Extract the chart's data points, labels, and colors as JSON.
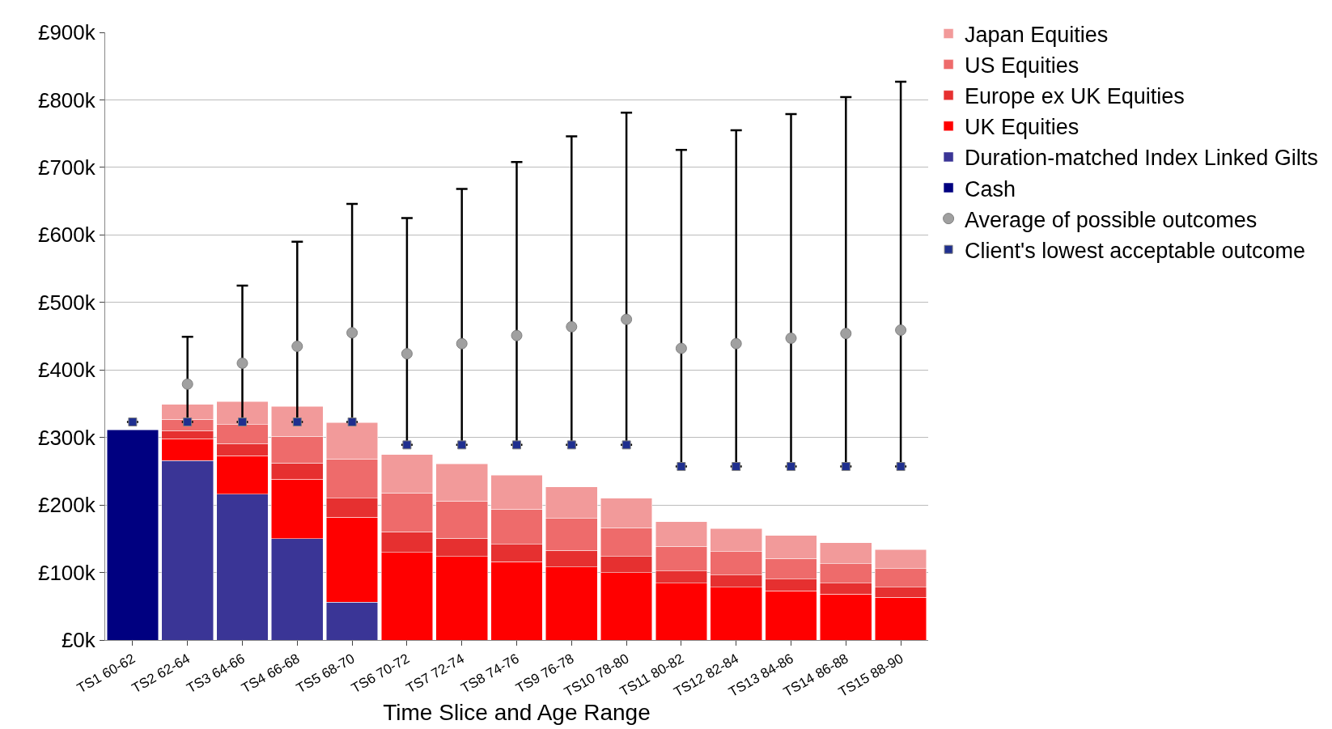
{
  "chart_data": {
    "type": "bar",
    "stacked": true,
    "xlabel": "Time Slice and Age Range",
    "categories": [
      "TS1 60-62",
      "TS2 62-64",
      "TS3 64-66",
      "TS4 66-68",
      "TS5 68-70",
      "TS6 70-72",
      "TS7 72-74",
      "TS8 74-76",
      "TS9 76-78",
      "TS10 78-80",
      "TS11 80-82",
      "TS12 82-84",
      "TS13 84-86",
      "TS14 86-88",
      "TS15 88-90"
    ],
    "series": [
      {
        "name": "Cash",
        "color": "#000080",
        "values": [
          311,
          null,
          null,
          null,
          null,
          null,
          null,
          null,
          null,
          null,
          null,
          null,
          null,
          null,
          null
        ]
      },
      {
        "name": "Duration-matched Index Linked Gilts",
        "color": "#3a3596",
        "values": [
          null,
          266,
          216,
          150,
          56,
          null,
          null,
          null,
          null,
          null,
          null,
          null,
          null,
          null,
          null
        ]
      },
      {
        "name": "UK Equities",
        "color": "#ff0000",
        "values": [
          null,
          32,
          57,
          88,
          126,
          130,
          124,
          116,
          108,
          100,
          84,
          78,
          73,
          68,
          63
        ]
      },
      {
        "name": "Europe ex UK Equities",
        "color": "#e63030",
        "values": [
          null,
          12,
          18,
          24,
          28,
          30,
          27,
          26,
          25,
          24,
          18,
          18,
          17,
          16,
          15
        ]
      },
      {
        "name": "US Equities",
        "color": "#ee6b6b",
        "values": [
          null,
          17,
          28,
          40,
          58,
          58,
          55,
          52,
          47,
          42,
          37,
          35,
          31,
          29,
          28
        ]
      },
      {
        "name": "Japan Equities",
        "color": "#f29a9a",
        "values": [
          null,
          22,
          34,
          44,
          54,
          57,
          55,
          50,
          47,
          44,
          36,
          34,
          34,
          31,
          28
        ]
      },
      {
        "name": "Average of possible outcomes",
        "type": "scatter",
        "marker": "circle",
        "color": "#a0a0a0",
        "values": [
          null,
          379,
          410,
          435,
          455,
          424,
          439,
          451,
          464,
          475,
          432,
          439,
          447,
          454,
          459
        ]
      },
      {
        "name": "Client's lowest acceptable outcome",
        "type": "scatter",
        "marker": "square",
        "color": "#1f2f8f",
        "values": [
          323,
          323,
          323,
          323,
          323,
          289,
          289,
          289,
          289,
          289,
          257,
          257,
          257,
          257,
          257
        ],
        "errors": [
          null,
          [
            323,
            449
          ],
          [
            323,
            525
          ],
          [
            323,
            590
          ],
          [
            323,
            646
          ],
          [
            289,
            625
          ],
          [
            289,
            668
          ],
          [
            289,
            708
          ],
          [
            289,
            746
          ],
          [
            289,
            781
          ],
          [
            257,
            726
          ],
          [
            257,
            755
          ],
          [
            257,
            779
          ],
          [
            257,
            804
          ],
          [
            257,
            827
          ]
        ]
      }
    ],
    "ylim": [
      0,
      900
    ],
    "yticks": [
      {
        "value": 0,
        "label": "£0k"
      },
      {
        "value": 100,
        "label": "£100k"
      },
      {
        "value": 200,
        "label": "£200k"
      },
      {
        "value": 300,
        "label": "£300k"
      },
      {
        "value": 400,
        "label": "£400k"
      },
      {
        "value": 500,
        "label": "£500k"
      },
      {
        "value": 600,
        "label": "£600k"
      },
      {
        "value": 700,
        "label": "£700k"
      },
      {
        "value": 800,
        "label": "£800k"
      },
      {
        "value": 900,
        "label": "£900k"
      }
    ],
    "grid": "y",
    "legend": "top right"
  }
}
